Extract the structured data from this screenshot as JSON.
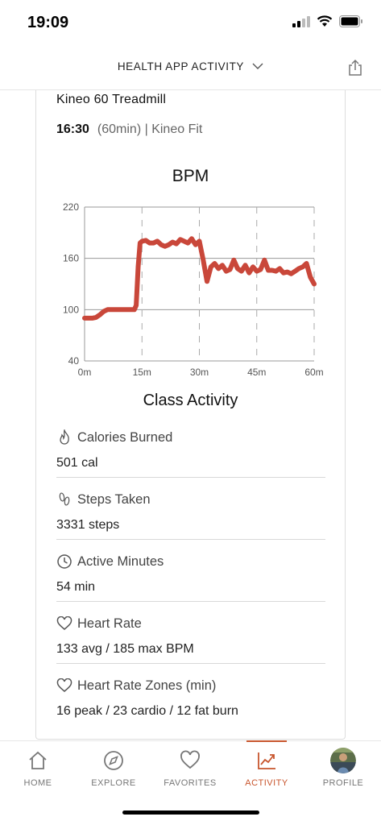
{
  "status": {
    "time": "19:09"
  },
  "header": {
    "title": "HEALTH APP ACTIVITY"
  },
  "class_info": {
    "name": "Kineo 60 Treadmill",
    "time": "16:30",
    "details": "(60min) | Kineo Fit"
  },
  "chart_title": "BPM",
  "chart_data": {
    "type": "line",
    "title": "BPM",
    "xlabel": "",
    "ylabel": "",
    "x_ticks": [
      "0m",
      "15m",
      "30m",
      "45m",
      "60m"
    ],
    "y_ticks": [
      "40",
      "100",
      "160",
      "220"
    ],
    "xlim": [
      0,
      60
    ],
    "ylim": [
      40,
      220
    ],
    "grid": "horizontal solid, vertical dashed",
    "line_color": "#c9473a",
    "series": [
      {
        "x": [
          0,
          2,
          3,
          4,
          5,
          6,
          7,
          8,
          10,
          12,
          13,
          13.5,
          14,
          14.5,
          15,
          16,
          17,
          18,
          19,
          20,
          21,
          22,
          23,
          24,
          25,
          26,
          27,
          28,
          29,
          30,
          31,
          32,
          33,
          34,
          35,
          36,
          37,
          38,
          39,
          40,
          41,
          42,
          43,
          44,
          45,
          46,
          47,
          48,
          49,
          50,
          51,
          52,
          53,
          54,
          55,
          56,
          57,
          58,
          59,
          60
        ],
        "y": [
          90,
          90,
          91,
          94,
          98,
          100,
          100,
          100,
          100,
          100,
          100,
          105,
          150,
          178,
          180,
          181,
          178,
          178,
          180,
          176,
          174,
          176,
          179,
          177,
          182,
          180,
          178,
          183,
          176,
          180,
          158,
          133,
          150,
          154,
          148,
          152,
          145,
          147,
          158,
          148,
          145,
          152,
          143,
          150,
          145,
          147,
          158,
          146,
          146,
          145,
          148,
          143,
          144,
          142,
          145,
          148,
          150,
          154,
          138,
          130
        ]
      }
    ]
  },
  "activity_title": "Class Activity",
  "metrics": [
    {
      "label": "Calories Burned",
      "value": "501 cal",
      "icon": "flame-icon"
    },
    {
      "label": "Steps Taken",
      "value": "3331 steps",
      "icon": "footprints-icon"
    },
    {
      "label": "Active Minutes",
      "value": "54 min",
      "icon": "clock-icon"
    },
    {
      "label": "Heart Rate",
      "value": "133 avg / 185 max BPM",
      "icon": "heart-icon"
    },
    {
      "label": "Heart Rate Zones (min)",
      "value": "16 peak / 23 cardio / 12 fat burn",
      "icon": "heart-icon"
    }
  ],
  "tabs": [
    {
      "label": "HOME",
      "icon": "home-icon"
    },
    {
      "label": "EXPLORE",
      "icon": "compass-icon"
    },
    {
      "label": "FAVORITES",
      "icon": "heart-icon"
    },
    {
      "label": "ACTIVITY",
      "icon": "chart-icon",
      "active": true
    },
    {
      "label": "PROFILE",
      "icon": "avatar"
    }
  ],
  "colors": {
    "accent": "#c8552d",
    "chart_line": "#c9473a"
  }
}
